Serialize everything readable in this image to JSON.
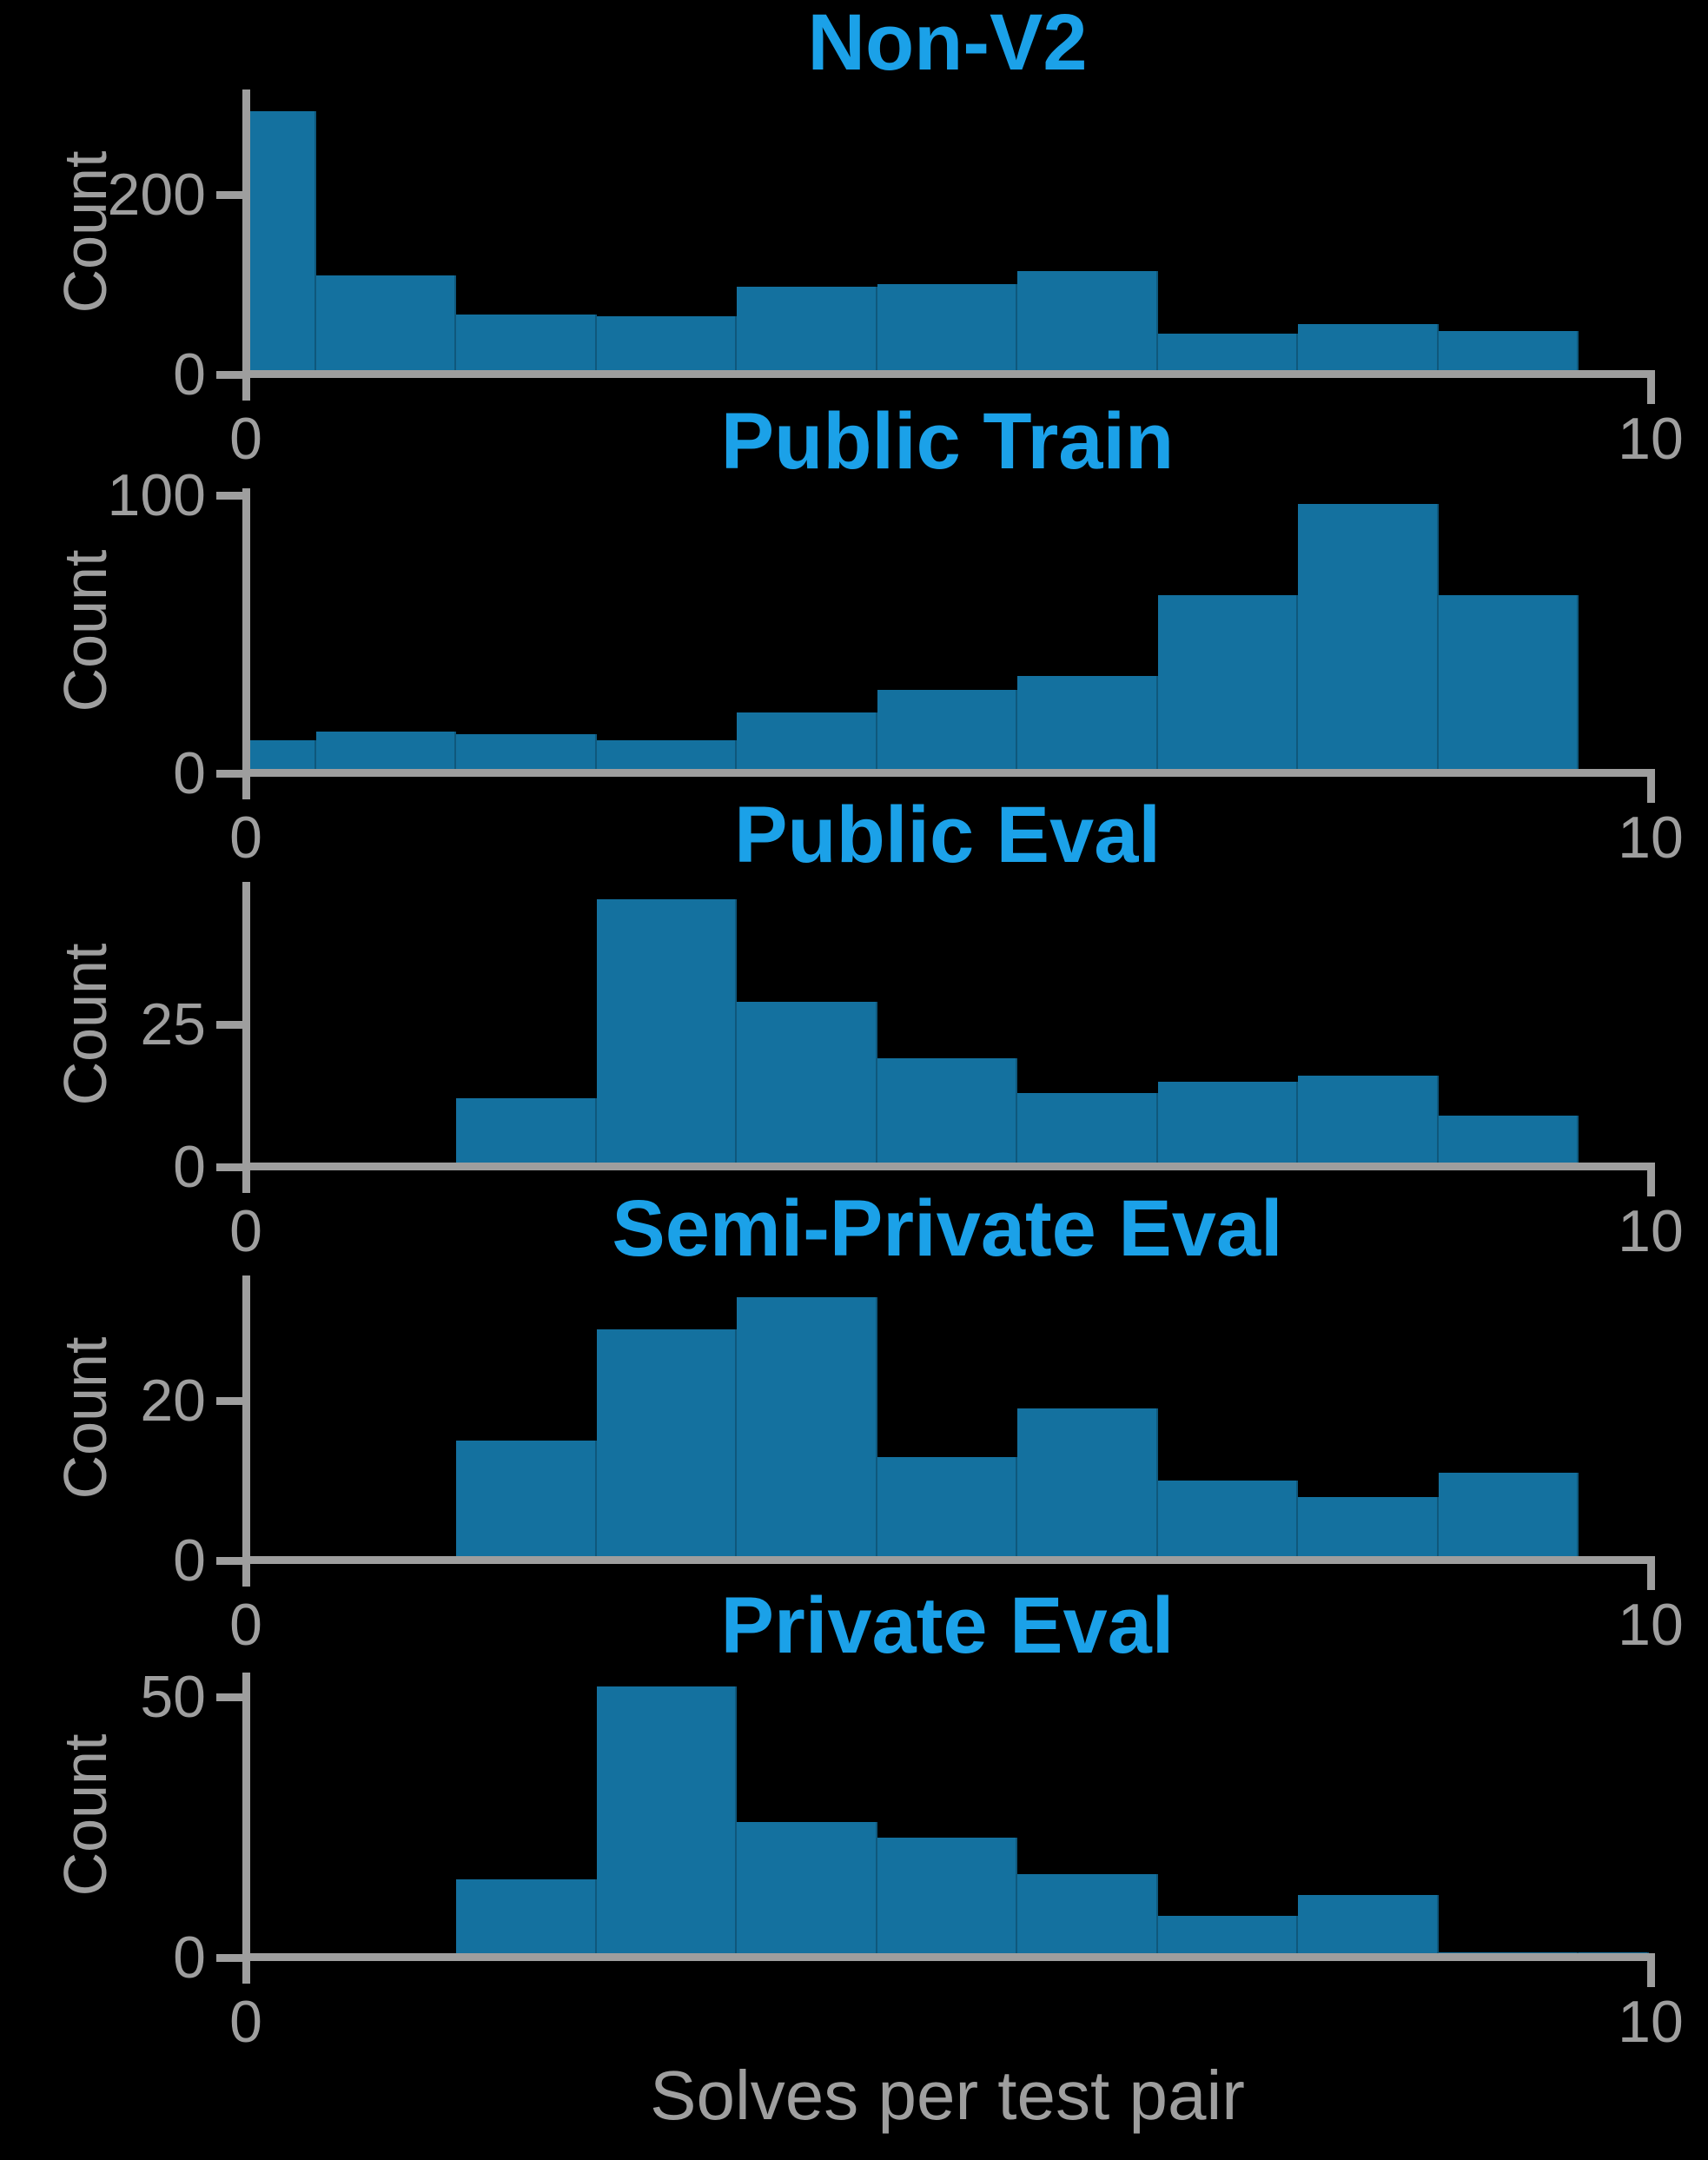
{
  "figure": {
    "xlabel": "Solves per test pair",
    "ylabel": "Count",
    "background_color": "#000000",
    "bar_color": "#14719f",
    "title_color": "#1ba1e8",
    "axis_color": "#9e9e9e"
  },
  "chart_data": [
    {
      "type": "bar",
      "title": "Non-V2",
      "ylabel": "Count",
      "xlabel": "",
      "xlim": [
        0,
        10
      ],
      "ylim": [
        0,
        317
      ],
      "bin_width": 1,
      "x_tick_labels": [
        "0",
        "10"
      ],
      "y_tick_labels": [
        "0",
        "200"
      ],
      "y_tick_value": 200,
      "bars": [
        {
          "x": 0,
          "count": 293
        },
        {
          "x": 1,
          "count": 110
        },
        {
          "x": 2,
          "count": 67
        },
        {
          "x": 3,
          "count": 65
        },
        {
          "x": 4,
          "count": 98
        },
        {
          "x": 5,
          "count": 101
        },
        {
          "x": 6,
          "count": 115
        },
        {
          "x": 7,
          "count": 45
        },
        {
          "x": 8,
          "count": 56
        },
        {
          "x": 9,
          "count": 48
        }
      ]
    },
    {
      "type": "bar",
      "title": "Public Train",
      "ylabel": "Count",
      "xlabel": "",
      "xlim": [
        0,
        10
      ],
      "ylim": [
        0,
        102.5
      ],
      "bin_width": 1,
      "x_tick_labels": [
        "0",
        "10"
      ],
      "y_tick_labels": [
        "0",
        "100"
      ],
      "y_tick_value": 100,
      "bars": [
        {
          "x": 0,
          "count": 12
        },
        {
          "x": 1,
          "count": 15
        },
        {
          "x": 2,
          "count": 14
        },
        {
          "x": 3,
          "count": 12
        },
        {
          "x": 4,
          "count": 22
        },
        {
          "x": 5,
          "count": 30
        },
        {
          "x": 6,
          "count": 35
        },
        {
          "x": 7,
          "count": 64
        },
        {
          "x": 8,
          "count": 97
        },
        {
          "x": 9,
          "count": 64
        }
      ]
    },
    {
      "type": "bar",
      "title": "Public Eval",
      "ylabel": "Count",
      "xlabel": "",
      "xlim": [
        0,
        10
      ],
      "ylim": [
        0,
        50
      ],
      "bin_width": 1,
      "x_tick_labels": [
        "0",
        "10"
      ],
      "y_tick_labels": [
        "0",
        "25"
      ],
      "y_tick_value": 25,
      "bars": [
        {
          "x": 2,
          "count": 12
        },
        {
          "x": 3,
          "count": 47
        },
        {
          "x": 4,
          "count": 29
        },
        {
          "x": 5,
          "count": 19
        },
        {
          "x": 6,
          "count": 13
        },
        {
          "x": 7,
          "count": 15
        },
        {
          "x": 8,
          "count": 16
        },
        {
          "x": 9,
          "count": 9
        }
      ]
    },
    {
      "type": "bar",
      "title": "Semi-Private Eval",
      "ylabel": "Count",
      "xlabel": "",
      "xlim": [
        0,
        10
      ],
      "ylim": [
        0,
        35.7
      ],
      "bin_width": 1,
      "x_tick_labels": [
        "0",
        "10"
      ],
      "y_tick_labels": [
        "0",
        "20"
      ],
      "y_tick_value": 20,
      "bars": [
        {
          "x": 2,
          "count": 15
        },
        {
          "x": 3,
          "count": 29
        },
        {
          "x": 4,
          "count": 33
        },
        {
          "x": 5,
          "count": 13
        },
        {
          "x": 6,
          "count": 19
        },
        {
          "x": 7,
          "count": 10
        },
        {
          "x": 8,
          "count": 8
        },
        {
          "x": 9,
          "count": 11
        }
      ]
    },
    {
      "type": "bar",
      "title": "Private Eval",
      "ylabel": "Count",
      "xlabel": "Solves per test pair",
      "xlim": [
        0,
        10
      ],
      "ylim": [
        0,
        54.7
      ],
      "bin_width": 1,
      "x_tick_labels": [
        "0",
        "10"
      ],
      "y_tick_labels": [
        "0",
        "50"
      ],
      "y_tick_value": 50,
      "bars": [
        {
          "x": 2,
          "count": 15
        },
        {
          "x": 3,
          "count": 52
        },
        {
          "x": 4,
          "count": 26
        },
        {
          "x": 5,
          "count": 23
        },
        {
          "x": 6,
          "count": 16
        },
        {
          "x": 7,
          "count": 8
        },
        {
          "x": 8,
          "count": 12
        },
        {
          "x": 9,
          "count": 1
        },
        {
          "x": 10,
          "count": 1
        }
      ]
    }
  ]
}
